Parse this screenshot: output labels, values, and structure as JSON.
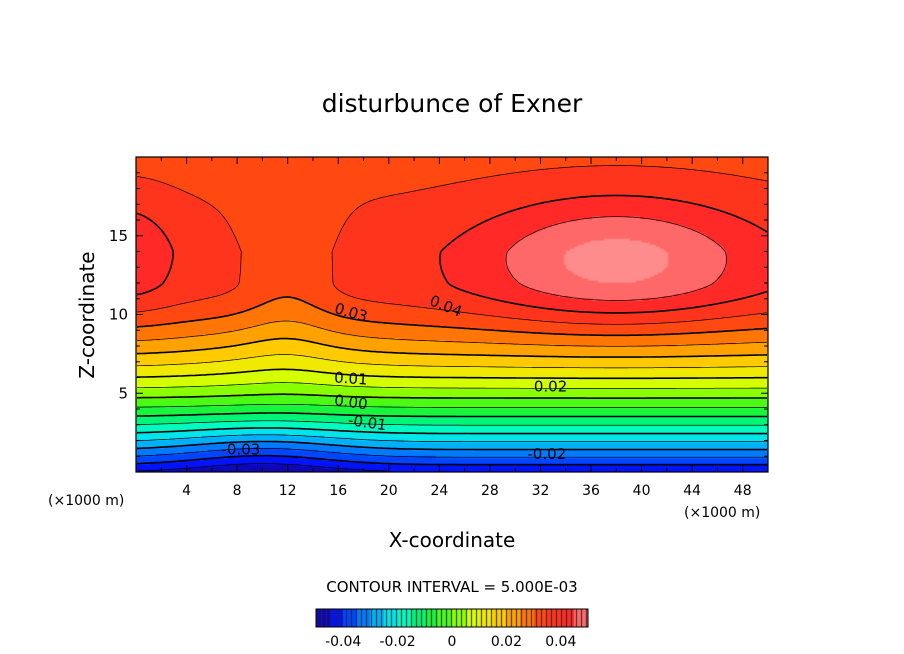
{
  "chart_data": {
    "type": "heatmap",
    "title": "disturbunce of Exner",
    "xlabel": "X-coordinate",
    "ylabel": "Z-coordinate",
    "x_unit_left": "(×1000 m)",
    "x_unit_right": "(×1000 m)",
    "xlim": [
      0,
      50
    ],
    "ylim": [
      0,
      20
    ],
    "x_ticks": [
      4,
      8,
      12,
      16,
      20,
      24,
      28,
      32,
      36,
      40,
      44,
      48
    ],
    "y_ticks": [
      5,
      10,
      15
    ],
    "contour_interval_text": "CONTOUR INTERVAL = 5.000E-03",
    "colorbar": {
      "range": [
        -0.05,
        0.05
      ],
      "ticks": [
        "-0.04",
        "-0.02",
        "0",
        "0.02",
        "0.04"
      ]
    },
    "contour_labels": [
      {
        "text": "0.03",
        "x": 17,
        "z": 10.1,
        "angle": 16
      },
      {
        "text": "0.04",
        "x": 24.5,
        "z": 10.5,
        "angle": 22
      },
      {
        "text": "0.01",
        "x": 17,
        "z": 5.9,
        "angle": 4
      },
      {
        "text": "0.02",
        "x": 32.8,
        "z": 5.4,
        "angle": 0
      },
      {
        "text": "0.00",
        "x": 17,
        "z": 4.4,
        "angle": 8
      },
      {
        "text": "-0.01",
        "x": 18.3,
        "z": 3.1,
        "angle": 8
      },
      {
        "text": "-0.02",
        "x": 32.5,
        "z": 1.1,
        "angle": 0
      },
      {
        "text": "-0.03",
        "x": 8.3,
        "z": 1.4,
        "angle": 0
      }
    ]
  }
}
